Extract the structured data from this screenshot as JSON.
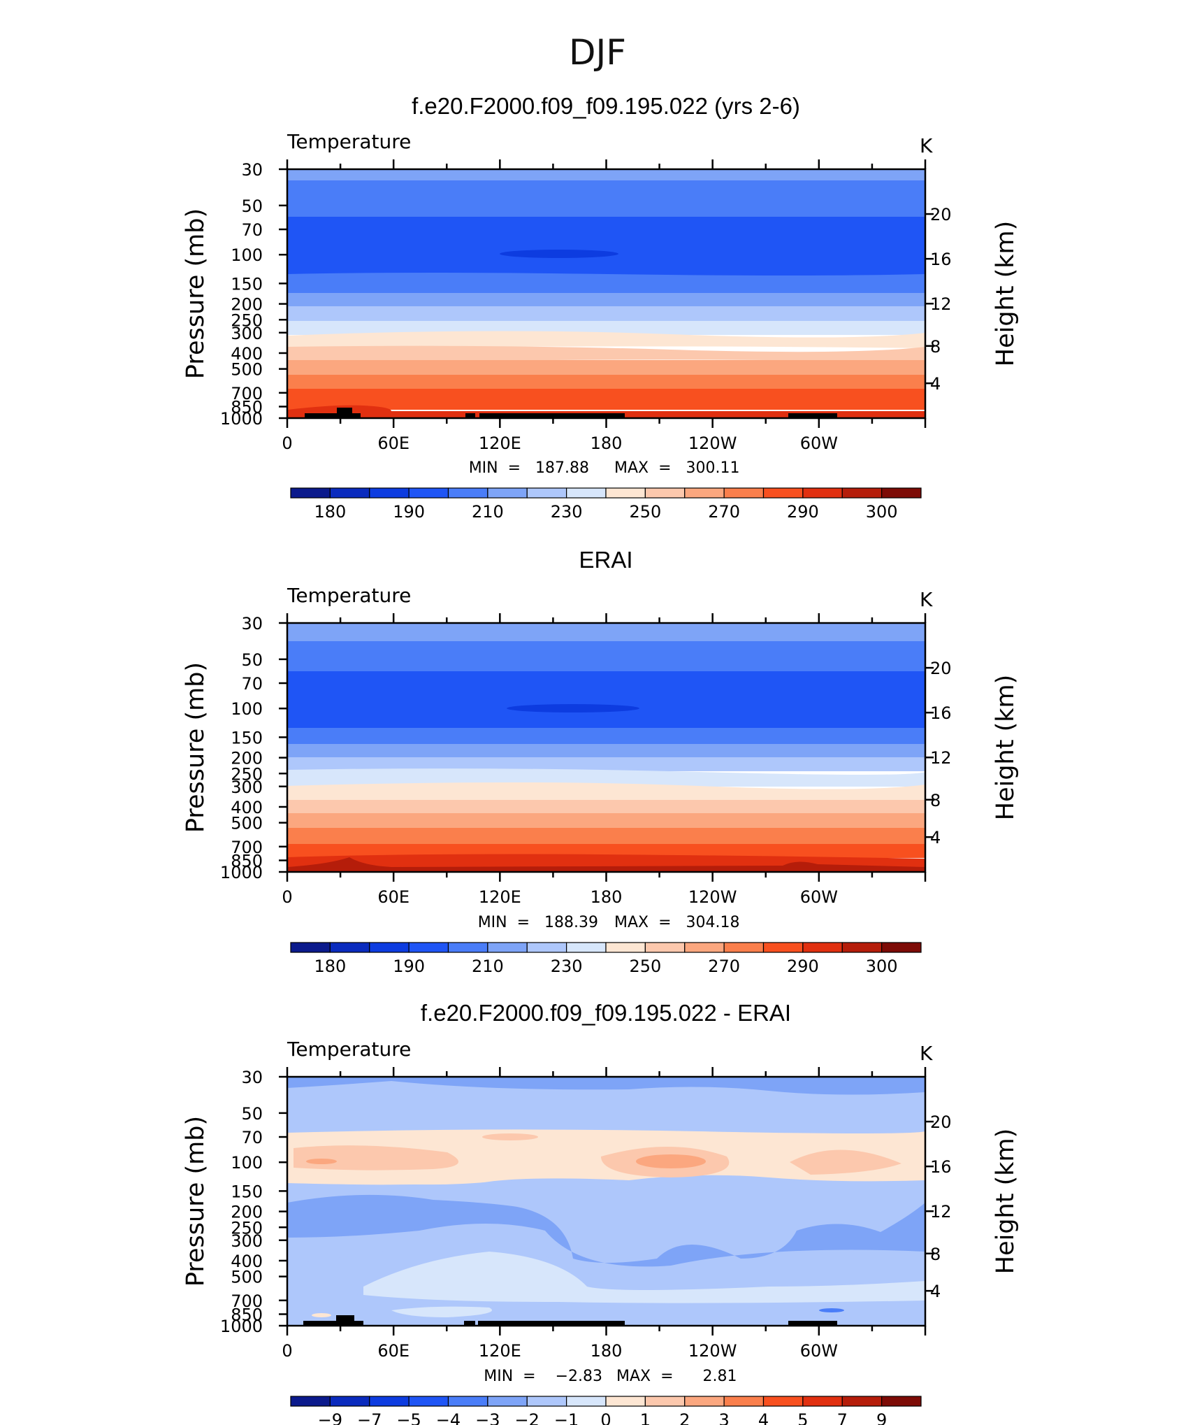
{
  "suptitle": "DJF",
  "chart_data": [
    {
      "type": "contour",
      "title": "f.e20.F2000.f09_f09.195.022 (yrs 2-6)",
      "left_label": "Temperature",
      "units": "K",
      "ylabel": "Pressure (mb)",
      "ylabel_right": "Height (km)",
      "x_ticks": [
        "0",
        "60E",
        "120E",
        "180",
        "120W",
        "60W"
      ],
      "x_range": [
        0,
        360
      ],
      "y_ticks": [
        "30",
        "50",
        "70",
        "100",
        "150",
        "200",
        "250",
        "300",
        "400",
        "500",
        "700",
        "850",
        "1000"
      ],
      "y_range_mb": [
        30,
        1000
      ],
      "y_right_ticks": [
        "20",
        "16",
        "12",
        "8",
        "4"
      ],
      "min_label": "MIN  =   187.88",
      "max_label": "MAX  =   300.11",
      "colorbar_labels": [
        "180",
        "190",
        "210",
        "230",
        "250",
        "270",
        "290",
        "300"
      ],
      "contour_levels": [
        175,
        180,
        185,
        190,
        200,
        210,
        220,
        230,
        240,
        250,
        260,
        270,
        280,
        290,
        295,
        300
      ]
    },
    {
      "type": "contour",
      "title": "ERAI",
      "left_label": "Temperature",
      "units": "K",
      "ylabel": "Pressure (mb)",
      "ylabel_right": "Height (km)",
      "x_ticks": [
        "0",
        "60E",
        "120E",
        "180",
        "120W",
        "60W"
      ],
      "x_range": [
        0,
        360
      ],
      "y_ticks": [
        "30",
        "50",
        "70",
        "100",
        "150",
        "200",
        "250",
        "300",
        "400",
        "500",
        "700",
        "850",
        "1000"
      ],
      "y_range_mb": [
        30,
        1000
      ],
      "y_right_ticks": [
        "20",
        "16",
        "12",
        "8",
        "4"
      ],
      "min_label": "MIN  =   188.39",
      "max_label": "MAX  =   304.18",
      "colorbar_labels": [
        "180",
        "190",
        "210",
        "230",
        "250",
        "270",
        "290",
        "300"
      ],
      "contour_levels": [
        175,
        180,
        185,
        190,
        200,
        210,
        220,
        230,
        240,
        250,
        260,
        270,
        280,
        290,
        295,
        300
      ]
    },
    {
      "type": "contour",
      "title": "f.e20.F2000.f09_f09.195.022 - ERAI",
      "left_label": "Temperature",
      "units": "K",
      "ylabel": "Pressure (mb)",
      "ylabel_right": "Height (km)",
      "x_ticks": [
        "0",
        "60E",
        "120E",
        "180",
        "120W",
        "60W"
      ],
      "x_range": [
        0,
        360
      ],
      "y_ticks": [
        "30",
        "50",
        "70",
        "100",
        "150",
        "200",
        "250",
        "300",
        "400",
        "500",
        "700",
        "850",
        "1000"
      ],
      "y_range_mb": [
        30,
        1000
      ],
      "y_right_ticks": [
        "20",
        "16",
        "12",
        "8",
        "4"
      ],
      "min_label": "MIN  =    −2.83",
      "max_label": "MAX  =      2.81",
      "colorbar_labels": [
        "−9",
        "−7",
        "−5",
        "−4",
        "−3",
        "−2",
        "−1",
        "0",
        "1",
        "2",
        "3",
        "4",
        "5",
        "7",
        "9"
      ],
      "contour_levels": [
        -9,
        -7,
        -5,
        -4,
        -3,
        -2,
        -1,
        0,
        1,
        2,
        3,
        4,
        5,
        7,
        9
      ]
    }
  ],
  "colormap": [
    "#0b1a8c",
    "#0a2bbe",
    "#0d3ce0",
    "#1f55f5",
    "#4a7df8",
    "#7ea4f7",
    "#aec7fb",
    "#d7e6fb",
    "#fde6d3",
    "#fcc8ad",
    "#fba77f",
    "#fa7f4c",
    "#f8501f",
    "#e13010",
    "#b51d0a",
    "#7d0b06"
  ]
}
